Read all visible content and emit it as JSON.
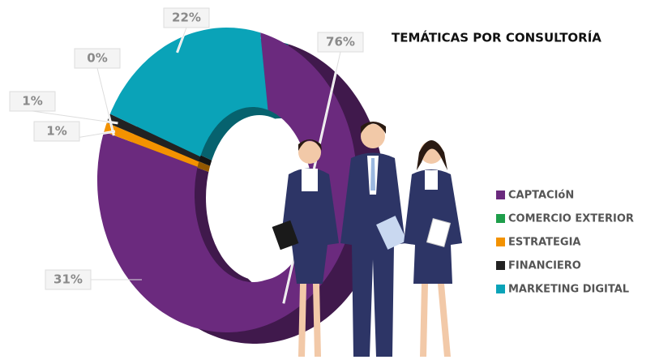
{
  "chart_data": {
    "type": "pie",
    "title": "TEMÁTICAS POR CONSULTORÍA",
    "categories": [
      "CAPTACIóN",
      "COMERCIO EXTERIOR",
      "ESTRATEGIA",
      "FINANCIERO",
      "MARKETING DIGITAL"
    ],
    "values": [
      76,
      0,
      1,
      1,
      22
    ],
    "value_labels": [
      "76%",
      "0%",
      "1%",
      "1%",
      "22%"
    ],
    "colors": [
      "#6b2a7e",
      "#1e9e4a",
      "#f39200",
      "#222222",
      "#0aa3b8"
    ],
    "annotations": [
      "31%"
    ],
    "legend": "right"
  }
}
